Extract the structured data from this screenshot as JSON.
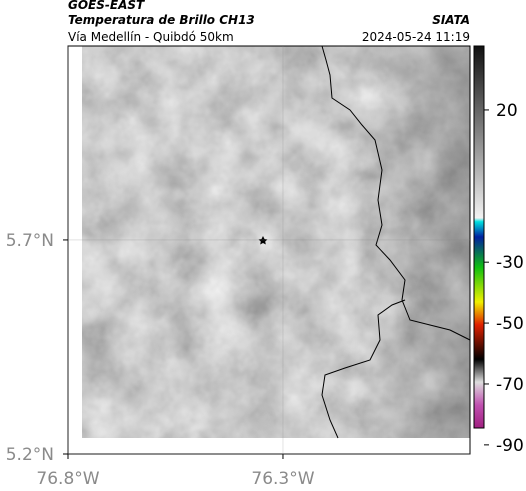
{
  "header": {
    "title": "GOES-EAST",
    "subtitle": "Temperatura de Brillo CH13",
    "route": "Vía Medellín - Quibdó 50km",
    "source": "SIATA",
    "timestamp": "2024-05-24 11:19"
  },
  "map": {
    "xlim": [
      -76.8,
      -75.865
    ],
    "ylim": [
      5.2,
      6.153
    ],
    "xticks": [
      {
        "value": -76.8,
        "label": "76.8°W"
      },
      {
        "value": -76.3,
        "label": "76.3°W"
      }
    ],
    "yticks": [
      {
        "value": 5.7,
        "label": "5.7°N"
      },
      {
        "value": 5.2,
        "label": "5.2°N"
      }
    ],
    "grid": true
  },
  "colorbar": {
    "lim": [
      41,
      -93
    ],
    "ticks": [
      20,
      -30,
      -50,
      -70,
      -90
    ]
  }
}
